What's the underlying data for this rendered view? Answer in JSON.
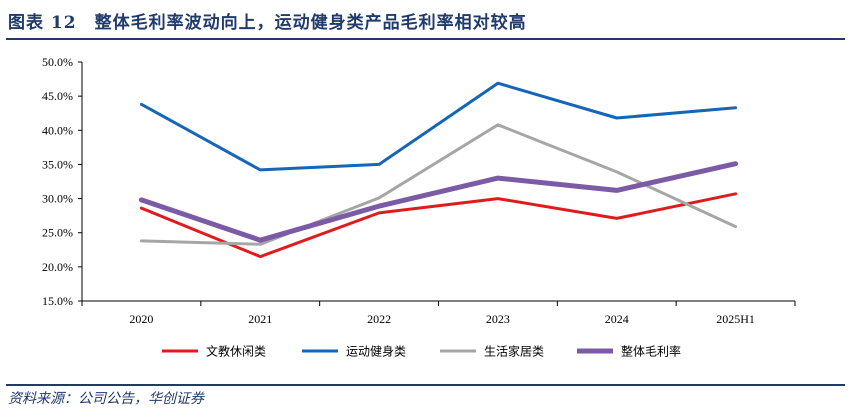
{
  "title": "图表 12　整体毛利率波动向上，运动健身类产品毛利率相对较高",
  "source": "资料来源：公司公告，华创证券",
  "chart_data": {
    "type": "line",
    "categories": [
      "2020",
      "2021",
      "2022",
      "2023",
      "2024",
      "2025H1"
    ],
    "ylim": [
      15.0,
      50.0
    ],
    "yticks": [
      "15.0%",
      "20.0%",
      "25.0%",
      "30.0%",
      "35.0%",
      "40.0%",
      "45.0%",
      "50.0%"
    ],
    "grid": false,
    "legend_position": "bottom",
    "series": [
      {
        "name": "文教休闲类",
        "color": "#e31a1c",
        "width": 3,
        "values": [
          28.6,
          21.5,
          27.9,
          30.0,
          27.1,
          30.7
        ]
      },
      {
        "name": "运动健身类",
        "color": "#1565b8",
        "width": 3,
        "values": [
          43.8,
          34.2,
          35.0,
          46.9,
          41.8,
          43.3
        ]
      },
      {
        "name": "生活家居类",
        "color": "#a6a6a6",
        "width": 3,
        "values": [
          23.8,
          23.3,
          30.1,
          40.8,
          33.9,
          25.9
        ]
      },
      {
        "name": "整体毛利率",
        "color": "#7b5aa6",
        "width": 5,
        "values": [
          29.8,
          23.9,
          28.9,
          33.0,
          31.2,
          35.1
        ]
      }
    ]
  }
}
